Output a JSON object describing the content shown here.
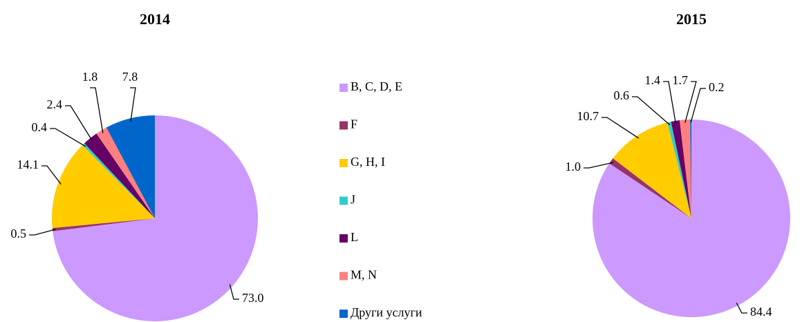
{
  "legend": {
    "labels": [
      "B, C, D, E",
      "F",
      "G, H, I",
      "J",
      "L",
      "M, N",
      "Други услуги"
    ],
    "colors": [
      "#cc99ff",
      "#993366",
      "#ffcc00",
      "#33cccc",
      "#660066",
      "#ff8080",
      "#0066cc"
    ]
  },
  "chart_data": [
    {
      "type": "pie",
      "title": "2014",
      "values": [
        73.0,
        0.5,
        14.1,
        0.4,
        2.4,
        1.8,
        7.8
      ],
      "value_labels": [
        "73.0",
        "0.5",
        "14.1",
        "0.4",
        "2.4",
        "1.8",
        "7.8"
      ]
    },
    {
      "type": "pie",
      "title": "2015",
      "values": [
        84.4,
        1.0,
        10.7,
        0.6,
        1.4,
        1.7,
        0.2
      ],
      "value_labels": [
        "84.4",
        "1.0",
        "10.7",
        "0.6",
        "1.4",
        "1.7",
        "0.2"
      ]
    }
  ]
}
